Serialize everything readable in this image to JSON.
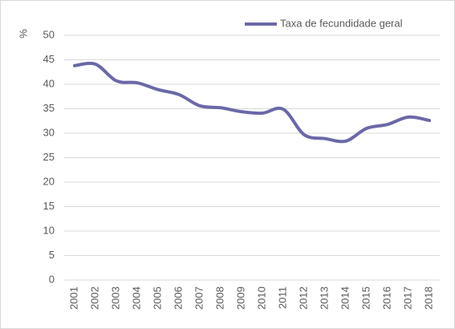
{
  "chart_data": {
    "type": "line",
    "y_label": "%",
    "categories": [
      "2001",
      "2002",
      "2003",
      "2004",
      "2005",
      "2006",
      "2007",
      "2008",
      "2009",
      "2010",
      "2011",
      "2012",
      "2013",
      "2014",
      "2015",
      "2016",
      "2017",
      "2018"
    ],
    "series": [
      {
        "name": "Taxa de fecundidade geral",
        "color": "#6b68a8",
        "values": [
          43.8,
          44.1,
          40.7,
          40.3,
          38.9,
          37.9,
          35.6,
          35.2,
          34.4,
          34.1,
          34.9,
          29.7,
          28.9,
          28.4,
          31.0,
          31.8,
          33.3,
          32.6
        ]
      }
    ],
    "ylim": [
      0,
      50
    ],
    "yticks": [
      0,
      5,
      10,
      15,
      20,
      25,
      30,
      35,
      40,
      45,
      50
    ],
    "grid": true,
    "legend": "top-right"
  }
}
